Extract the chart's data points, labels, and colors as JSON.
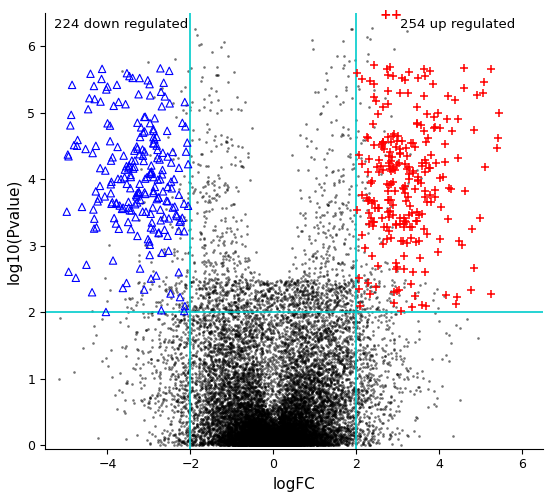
{
  "title": "",
  "xlabel": "logFC",
  "ylabel": "log10(Pvalue)",
  "xlim": [
    -5.5,
    6.5
  ],
  "ylim": [
    -0.05,
    6.5
  ],
  "xticks": [
    -4,
    -2,
    0,
    2,
    4,
    6
  ],
  "yticks": [
    0,
    1,
    2,
    3,
    4,
    5,
    6
  ],
  "vline1": -2,
  "vline2": 2,
  "hline": 2,
  "line_color": "#00CCCC",
  "down_label": "224 down regulated",
  "up_label": "254 up regulated",
  "down_color": "blue",
  "up_color": "red",
  "neutral_color": "black",
  "background_color": "white",
  "seed": 42,
  "n_down": 224,
  "n_up": 254
}
